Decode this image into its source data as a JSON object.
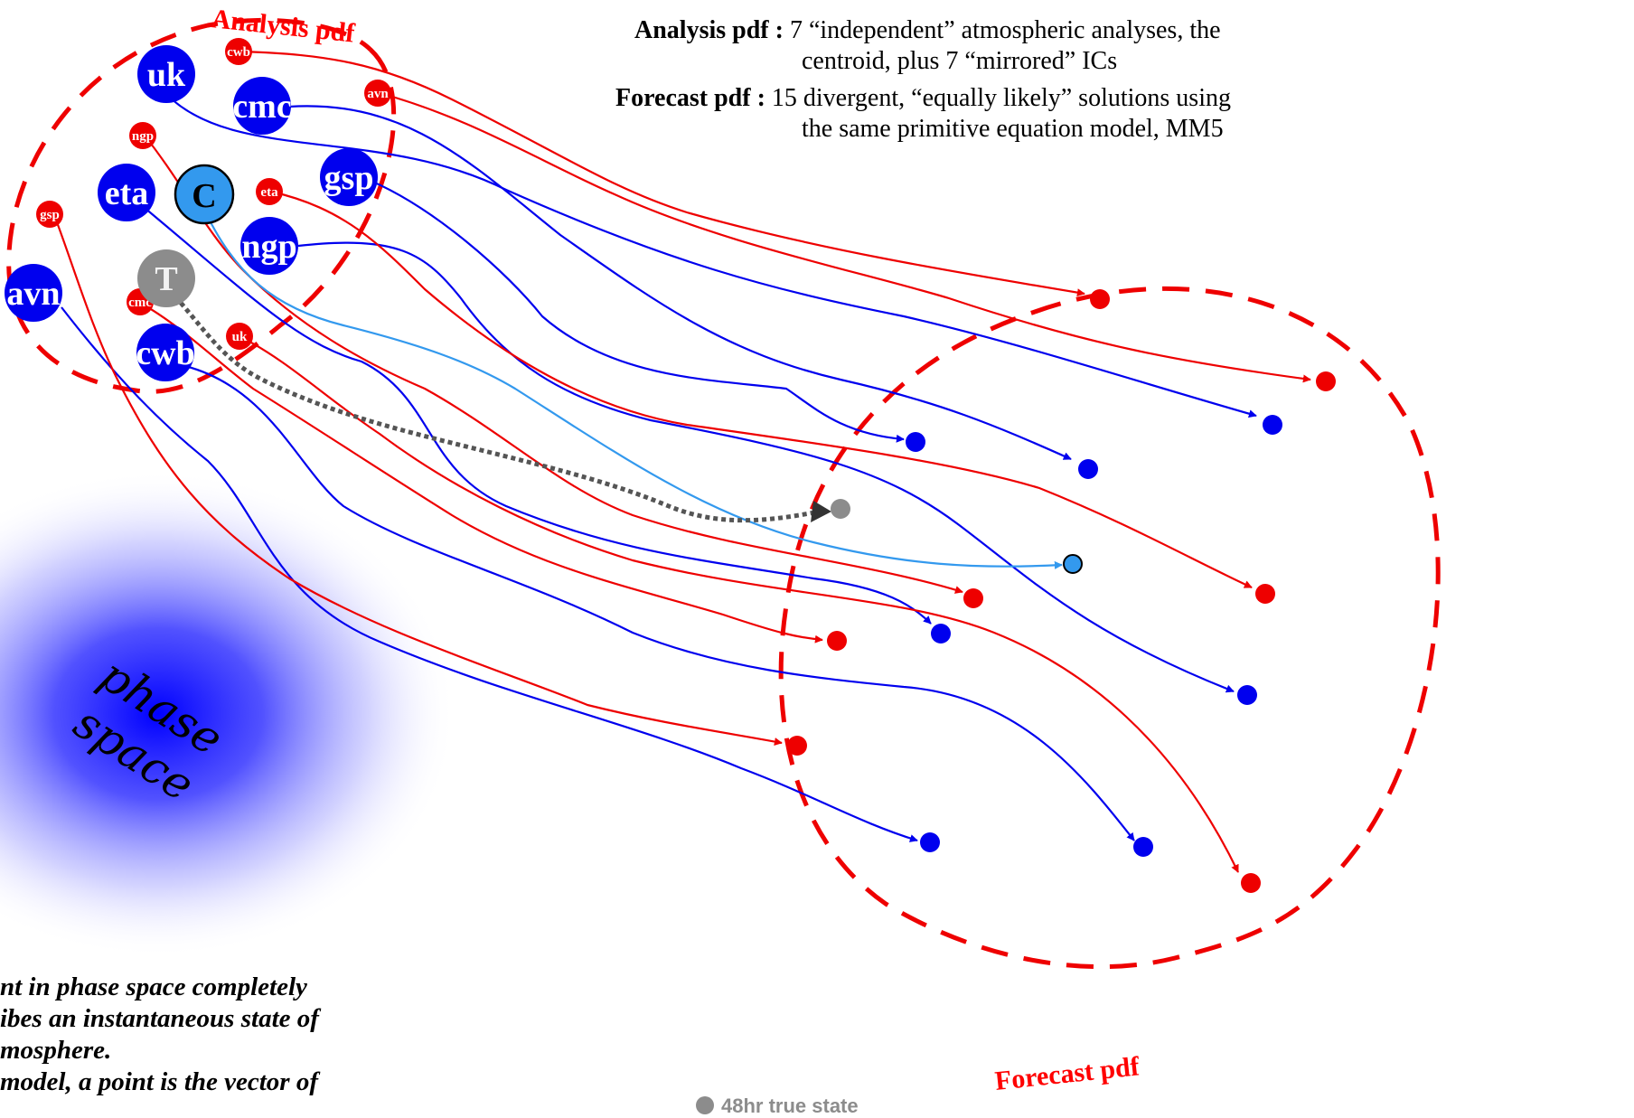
{
  "labels": {
    "analysis_pdf": "Analysis pdf",
    "forecast_pdf": "Forecast pdf",
    "phase_space_line1": "phase",
    "phase_space_line2": "space",
    "legend_true_state": "48hr true state"
  },
  "description": {
    "analysis_term": "Analysis pdf :",
    "analysis_line1": "7 “independent” atmospheric analyses, the",
    "analysis_line2": "centroid, plus 7 “mirrored” ICs",
    "forecast_term": "Forecast pdf :",
    "forecast_line1": "15 divergent, “equally likely” solutions using",
    "forecast_line2": "the same primitive equation model, MM5"
  },
  "caption": {
    "line1": "nt in phase space completely",
    "line2": "ibes an instantaneous state of",
    "line3": "mosphere.",
    "line4": "model, a point is the vector of"
  },
  "analysis_nodes": [
    {
      "id": "uk",
      "label": "uk"
    },
    {
      "id": "cmc",
      "label": "cmc"
    },
    {
      "id": "gsp",
      "label": "gsp"
    },
    {
      "id": "eta",
      "label": "eta"
    },
    {
      "id": "ngp",
      "label": "ngp"
    },
    {
      "id": "avn",
      "label": "avn"
    },
    {
      "id": "cwb",
      "label": "cwb"
    },
    {
      "id": "centroid",
      "label": "C"
    },
    {
      "id": "truth",
      "label": "T"
    }
  ],
  "mirrored_nodes": [
    {
      "id": "cwb",
      "label": "cwb"
    },
    {
      "id": "avn",
      "label": "avn"
    },
    {
      "id": "ngp",
      "label": "ngp"
    },
    {
      "id": "eta",
      "label": "eta"
    },
    {
      "id": "gsp",
      "label": "gsp"
    },
    {
      "id": "cmc",
      "label": "cmc"
    },
    {
      "id": "uk",
      "label": "uk"
    }
  ],
  "colors": {
    "analysis": "#0000ee",
    "mirrored": "#ee0000",
    "centroid": "#3399ee",
    "truth": "#8c8c8c",
    "pdf_outline": "#ee0000"
  }
}
